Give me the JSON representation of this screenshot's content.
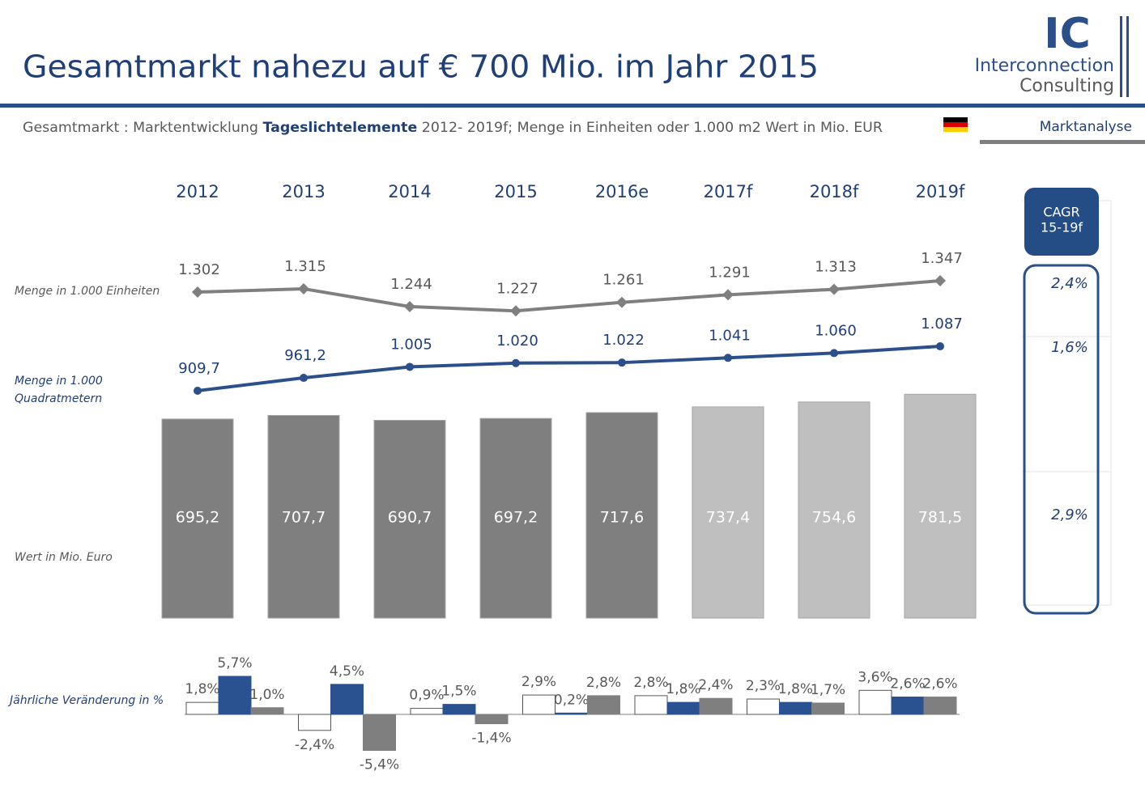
{
  "header": {
    "title": "Gesamtmarkt nahezu auf € 700 Mio. im Jahr 2015",
    "subtitle": [
      "Gesamtmarkt : Marktentwicklung ",
      "Tageslichtelemente",
      " 2012- 2019f; Menge in Einheiten oder 1.000 m2 Wert in Mio. EUR"
    ],
    "logo": [
      "IC",
      "Interconnection",
      "Consulting"
    ],
    "section": "Marktanalyse"
  },
  "chart_data": [
    {
      "type": "combo",
      "categories": [
        "2012",
        "2013",
        "2014",
        "2015",
        "2016e",
        "2017f",
        "2018f",
        "2019f"
      ],
      "series": [
        {
          "name": "Menge in 1.000 Einheiten",
          "mark": "line",
          "color": "#7f7f7f",
          "values": [
            1302,
            1315,
            1244,
            1227,
            1261,
            1291,
            1313,
            1347
          ],
          "value_labels": [
            "1.302",
            "1.315",
            "1.244",
            "1.227",
            "1.261",
            "1.291",
            "1.313",
            "1.347"
          ]
        },
        {
          "name": "Menge in 1.000 Quadratmetern",
          "mark": "line",
          "color": "#2a4f8a",
          "values": [
            909.7,
            961.2,
            1005,
            1020,
            1022,
            1041,
            1060,
            1087
          ],
          "value_labels": [
            "909,7",
            "961,2",
            "1.005",
            "1.020",
            "1.022",
            "1.041",
            "1.060",
            "1.087"
          ]
        },
        {
          "name": "Wert in Mio. Euro",
          "mark": "bar",
          "colors": [
            "#7f7f7f",
            "#7f7f7f",
            "#7f7f7f",
            "#7f7f7f",
            "#7f7f7f",
            "#bfbfbf",
            "#bfbfbf",
            "#bfbfbf"
          ],
          "values": [
            695.2,
            707.7,
            690.7,
            697.2,
            717.6,
            737.4,
            754.6,
            781.5
          ],
          "value_labels": [
            "695,2",
            "707,7",
            "690,7",
            "697,2",
            "717,6",
            "737,4",
            "754,6",
            "781,5"
          ]
        }
      ]
    },
    {
      "type": "bar",
      "ylabel": "Jährliche Veränderung in %",
      "categories": [
        null,
        null,
        null,
        null,
        null,
        null,
        null
      ],
      "series": [
        {
          "color": "#ffffff",
          "values": [
            1.8,
            -2.4,
            0.9,
            2.9,
            2.8,
            2.3,
            3.6
          ],
          "value_labels": [
            "1,8%",
            "-2,4%",
            "0,9%",
            "2,9%",
            "2,8%",
            "2,3%",
            "3,6%"
          ]
        },
        {
          "color": "#2a5190",
          "values": [
            5.7,
            4.5,
            1.5,
            0.2,
            1.8,
            1.8,
            2.6
          ],
          "value_labels": [
            "5,7%",
            "4,5%",
            "1,5%",
            "0,2%",
            "1,8%",
            "1,8%",
            "2,6%"
          ]
        },
        {
          "color": "#7f7f7f",
          "values": [
            1.0,
            -5.4,
            -1.4,
            2.8,
            2.4,
            1.7,
            2.6
          ],
          "value_labels": [
            "1,0%",
            "-5,4%",
            "-1,4%",
            "2,8%",
            "2,4%",
            "1,7%",
            "2,6%"
          ]
        }
      ]
    }
  ],
  "cagr": {
    "title": [
      "CAGR",
      "15-19f"
    ],
    "values": [
      2.4,
      1.6,
      2.9
    ],
    "value_labels": [
      "2,4%",
      "1,6%",
      "2,9%"
    ]
  }
}
